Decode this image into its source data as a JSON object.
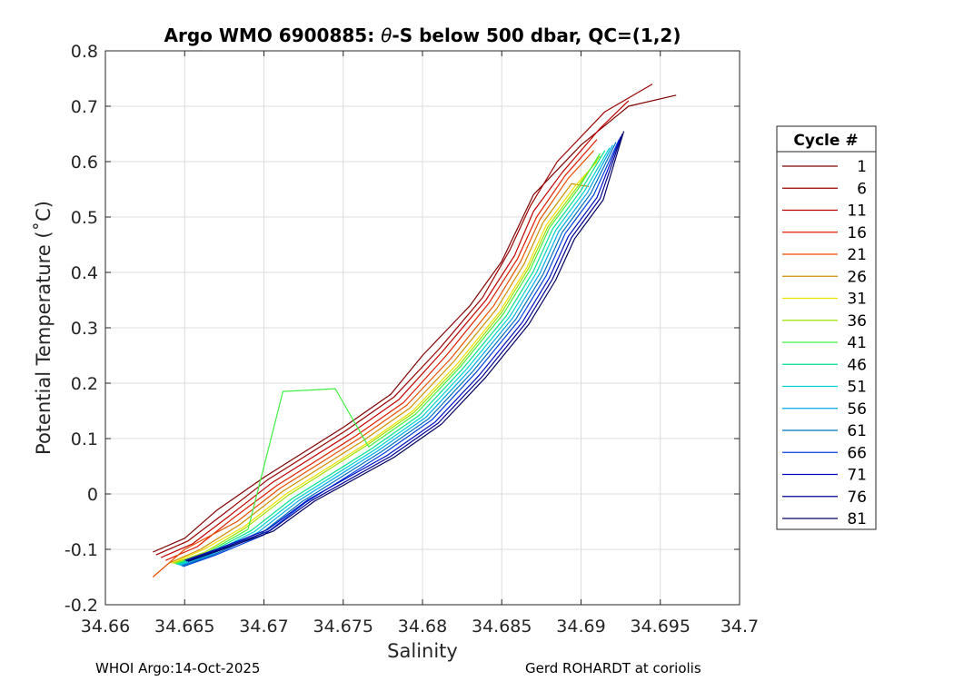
{
  "chart_data": {
    "type": "line",
    "title": "Argo WMO 6900885: θ-S below 500 dbar,  QC=(1,2)",
    "title_parts": {
      "prefix": "Argo WMO 6900885: ",
      "theta": "θ",
      "suffix": "-S below 500 dbar,  QC=(1,2)"
    },
    "xlabel": "Salinity",
    "ylabel": "Potential Temperature (˚C)",
    "xlim": [
      34.66,
      34.7
    ],
    "ylim": [
      -0.2,
      0.8
    ],
    "x_ticks": [
      34.66,
      34.665,
      34.67,
      34.675,
      34.68,
      34.685,
      34.69,
      34.695,
      34.7
    ],
    "x_tick_labels": [
      "34.66",
      "34.665",
      "34.67",
      "34.675",
      "34.68",
      "34.685",
      "34.69",
      "34.695",
      "34.7"
    ],
    "y_ticks": [
      -0.2,
      -0.1,
      0,
      0.1,
      0.2,
      0.3,
      0.4,
      0.5,
      0.6,
      0.7,
      0.8
    ],
    "y_tick_labels": [
      "-0.2",
      "-0.1",
      "0",
      "0.1",
      "0.2",
      "0.3",
      "0.4",
      "0.5",
      "0.6",
      "0.7",
      "0.8"
    ],
    "grid": true,
    "legend_title": "Cycle #",
    "legend_position": "right-outside",
    "series": [
      {
        "name": "1",
        "color": "#7f0000",
        "points": [
          [
            34.663,
            -0.105
          ],
          [
            34.665,
            -0.08
          ],
          [
            34.667,
            -0.03
          ],
          [
            34.67,
            0.03
          ],
          [
            34.675,
            0.12
          ],
          [
            34.678,
            0.18
          ],
          [
            34.68,
            0.25
          ],
          [
            34.683,
            0.34
          ],
          [
            34.685,
            0.42
          ],
          [
            34.686,
            0.48
          ],
          [
            34.687,
            0.54
          ],
          [
            34.69,
            0.63
          ],
          [
            34.693,
            0.7
          ],
          [
            34.696,
            0.72
          ]
        ]
      },
      {
        "name": "6",
        "color": "#9a0000",
        "points": [
          [
            34.6632,
            -0.11
          ],
          [
            34.6652,
            -0.085
          ],
          [
            34.6675,
            -0.035
          ],
          [
            34.6702,
            0.025
          ],
          [
            34.6752,
            0.115
          ],
          [
            34.6782,
            0.175
          ],
          [
            34.681,
            0.26
          ],
          [
            34.6838,
            0.355
          ],
          [
            34.6855,
            0.44
          ],
          [
            34.6868,
            0.52
          ],
          [
            34.6885,
            0.6
          ],
          [
            34.6915,
            0.69
          ],
          [
            34.6945,
            0.74
          ]
        ]
      },
      {
        "name": "11",
        "color": "#c00000",
        "points": [
          [
            34.6635,
            -0.115
          ],
          [
            34.6655,
            -0.09
          ],
          [
            34.6678,
            -0.04
          ],
          [
            34.6705,
            0.02
          ],
          [
            34.6755,
            0.11
          ],
          [
            34.6785,
            0.17
          ],
          [
            34.6812,
            0.255
          ],
          [
            34.684,
            0.35
          ],
          [
            34.6858,
            0.43
          ],
          [
            34.687,
            0.51
          ],
          [
            34.6888,
            0.58
          ],
          [
            34.6912,
            0.66
          ],
          [
            34.693,
            0.71
          ]
        ]
      },
      {
        "name": "16",
        "color": "#e01c00",
        "points": [
          [
            34.6638,
            -0.12
          ],
          [
            34.6658,
            -0.095
          ],
          [
            34.668,
            -0.045
          ],
          [
            34.6708,
            0.015
          ],
          [
            34.6758,
            0.105
          ],
          [
            34.6788,
            0.165
          ],
          [
            34.6815,
            0.25
          ],
          [
            34.6842,
            0.345
          ],
          [
            34.686,
            0.425
          ],
          [
            34.6872,
            0.5
          ],
          [
            34.689,
            0.575
          ],
          [
            34.691,
            0.64
          ]
        ]
      },
      {
        "name": "21",
        "color": "#e85000",
        "points": [
          [
            34.663,
            -0.15
          ],
          [
            34.665,
            -0.1
          ],
          [
            34.6683,
            -0.05
          ],
          [
            34.671,
            0.01
          ],
          [
            34.676,
            0.1
          ],
          [
            34.679,
            0.16
          ],
          [
            34.6818,
            0.245
          ],
          [
            34.6845,
            0.34
          ],
          [
            34.6862,
            0.42
          ],
          [
            34.6874,
            0.495
          ],
          [
            34.6892,
            0.57
          ],
          [
            34.6908,
            0.62
          ]
        ]
      },
      {
        "name": "26",
        "color": "#d09000",
        "points": [
          [
            34.664,
            -0.125
          ],
          [
            34.666,
            -0.1
          ],
          [
            34.6685,
            -0.055
          ],
          [
            34.6712,
            0.005
          ],
          [
            34.6762,
            0.095
          ],
          [
            34.6792,
            0.155
          ],
          [
            34.682,
            0.24
          ],
          [
            34.6847,
            0.335
          ],
          [
            34.6864,
            0.415
          ],
          [
            34.6876,
            0.49
          ],
          [
            34.6894,
            0.56
          ],
          [
            34.6905,
            0.555
          ]
        ]
      },
      {
        "name": "31",
        "color": "#f0e000",
        "points": [
          [
            34.6642,
            -0.125
          ],
          [
            34.6662,
            -0.1
          ],
          [
            34.6687,
            -0.06
          ],
          [
            34.6714,
            0.0
          ],
          [
            34.6764,
            0.09
          ],
          [
            34.6794,
            0.15
          ],
          [
            34.6822,
            0.235
          ],
          [
            34.6849,
            0.33
          ],
          [
            34.6866,
            0.41
          ],
          [
            34.6878,
            0.485
          ],
          [
            34.6896,
            0.555
          ],
          [
            34.691,
            0.6
          ]
        ]
      },
      {
        "name": "36",
        "color": "#a0e000",
        "points": [
          [
            34.6643,
            -0.125
          ],
          [
            34.6663,
            -0.105
          ],
          [
            34.6688,
            -0.062
          ],
          [
            34.6715,
            -0.003
          ],
          [
            34.6765,
            0.088
          ],
          [
            34.6795,
            0.148
          ],
          [
            34.6823,
            0.232
          ],
          [
            34.685,
            0.328
          ],
          [
            34.6867,
            0.408
          ],
          [
            34.6879,
            0.482
          ],
          [
            34.6897,
            0.552
          ],
          [
            34.6912,
            0.61
          ]
        ]
      },
      {
        "name": "41",
        "color": "#40f040",
        "points": [
          [
            34.6644,
            -0.126
          ],
          [
            34.6664,
            -0.106
          ],
          [
            34.669,
            -0.064
          ],
          [
            34.6712,
            0.185
          ],
          [
            34.6745,
            0.19
          ],
          [
            34.6766,
            0.085
          ],
          [
            34.6796,
            0.145
          ],
          [
            34.6824,
            0.23
          ],
          [
            34.6851,
            0.325
          ],
          [
            34.6868,
            0.405
          ],
          [
            34.688,
            0.48
          ],
          [
            34.6898,
            0.55
          ],
          [
            34.6912,
            0.615
          ]
        ]
      },
      {
        "name": "46",
        "color": "#00e090",
        "points": [
          [
            34.6645,
            -0.127
          ],
          [
            34.6665,
            -0.107
          ],
          [
            34.6692,
            -0.066
          ],
          [
            34.6718,
            -0.008
          ],
          [
            34.6768,
            0.082
          ],
          [
            34.6798,
            0.142
          ],
          [
            34.6826,
            0.228
          ],
          [
            34.6853,
            0.322
          ],
          [
            34.687,
            0.402
          ],
          [
            34.6882,
            0.478
          ],
          [
            34.69,
            0.548
          ],
          [
            34.6915,
            0.62
          ]
        ]
      },
      {
        "name": "51",
        "color": "#00d0d0",
        "points": [
          [
            34.6646,
            -0.128
          ],
          [
            34.6666,
            -0.108
          ],
          [
            34.6694,
            -0.068
          ],
          [
            34.672,
            -0.01
          ],
          [
            34.677,
            0.08
          ],
          [
            34.68,
            0.14
          ],
          [
            34.6828,
            0.226
          ],
          [
            34.6855,
            0.32
          ],
          [
            34.6872,
            0.4
          ],
          [
            34.6884,
            0.476
          ],
          [
            34.6902,
            0.546
          ],
          [
            34.6918,
            0.625
          ]
        ]
      },
      {
        "name": "56",
        "color": "#00a8e8",
        "points": [
          [
            34.6647,
            -0.129
          ],
          [
            34.6667,
            -0.109
          ],
          [
            34.6696,
            -0.07
          ],
          [
            34.6722,
            -0.012
          ],
          [
            34.6772,
            0.078
          ],
          [
            34.6802,
            0.138
          ],
          [
            34.683,
            0.224
          ],
          [
            34.6857,
            0.318
          ],
          [
            34.6874,
            0.398
          ],
          [
            34.6886,
            0.474
          ],
          [
            34.6904,
            0.544
          ],
          [
            34.692,
            0.63
          ]
        ]
      },
      {
        "name": "61",
        "color": "#0070c0",
        "points": [
          [
            34.6648,
            -0.13
          ],
          [
            34.6668,
            -0.11
          ],
          [
            34.6698,
            -0.072
          ],
          [
            34.6724,
            -0.014
          ],
          [
            34.6774,
            0.076
          ],
          [
            34.6804,
            0.136
          ],
          [
            34.6832,
            0.222
          ],
          [
            34.6859,
            0.316
          ],
          [
            34.6876,
            0.396
          ],
          [
            34.6888,
            0.472
          ],
          [
            34.6906,
            0.542
          ],
          [
            34.6922,
            0.635
          ]
        ]
      },
      {
        "name": "66",
        "color": "#0040e0",
        "points": [
          [
            34.6649,
            -0.131
          ],
          [
            34.6669,
            -0.111
          ],
          [
            34.67,
            -0.074
          ],
          [
            34.6726,
            -0.016
          ],
          [
            34.6776,
            0.074
          ],
          [
            34.6806,
            0.134
          ],
          [
            34.6834,
            0.22
          ],
          [
            34.6861,
            0.314
          ],
          [
            34.6878,
            0.394
          ],
          [
            34.689,
            0.47
          ],
          [
            34.6908,
            0.54
          ],
          [
            34.6924,
            0.64
          ]
        ]
      },
      {
        "name": "71",
        "color": "#0010c0",
        "points": [
          [
            34.665,
            -0.12
          ],
          [
            34.667,
            -0.1
          ],
          [
            34.6702,
            -0.065
          ],
          [
            34.6728,
            -0.01
          ],
          [
            34.6778,
            0.07
          ],
          [
            34.6808,
            0.13
          ],
          [
            34.6836,
            0.215
          ],
          [
            34.6863,
            0.31
          ],
          [
            34.688,
            0.39
          ],
          [
            34.6892,
            0.465
          ],
          [
            34.691,
            0.535
          ],
          [
            34.6925,
            0.645
          ]
        ]
      },
      {
        "name": "76",
        "color": "#000090",
        "points": [
          [
            34.6651,
            -0.121
          ],
          [
            34.6671,
            -0.101
          ],
          [
            34.6704,
            -0.066
          ],
          [
            34.673,
            -0.012
          ],
          [
            34.678,
            0.068
          ],
          [
            34.681,
            0.128
          ],
          [
            34.6838,
            0.213
          ],
          [
            34.6865,
            0.308
          ],
          [
            34.6882,
            0.388
          ],
          [
            34.6894,
            0.463
          ],
          [
            34.6912,
            0.533
          ],
          [
            34.6926,
            0.65
          ]
        ]
      },
      {
        "name": "81",
        "color": "#000060",
        "points": [
          [
            34.6652,
            -0.122
          ],
          [
            34.6672,
            -0.102
          ],
          [
            34.6706,
            -0.067
          ],
          [
            34.6732,
            -0.013
          ],
          [
            34.6782,
            0.066
          ],
          [
            34.6812,
            0.126
          ],
          [
            34.684,
            0.211
          ],
          [
            34.6867,
            0.306
          ],
          [
            34.6884,
            0.386
          ],
          [
            34.6896,
            0.461
          ],
          [
            34.6914,
            0.531
          ],
          [
            34.6927,
            0.655
          ]
        ]
      }
    ]
  },
  "footer": {
    "left": "WHOI Argo:14-Oct-2025",
    "right": "Gerd ROHARDT at coriolis"
  }
}
